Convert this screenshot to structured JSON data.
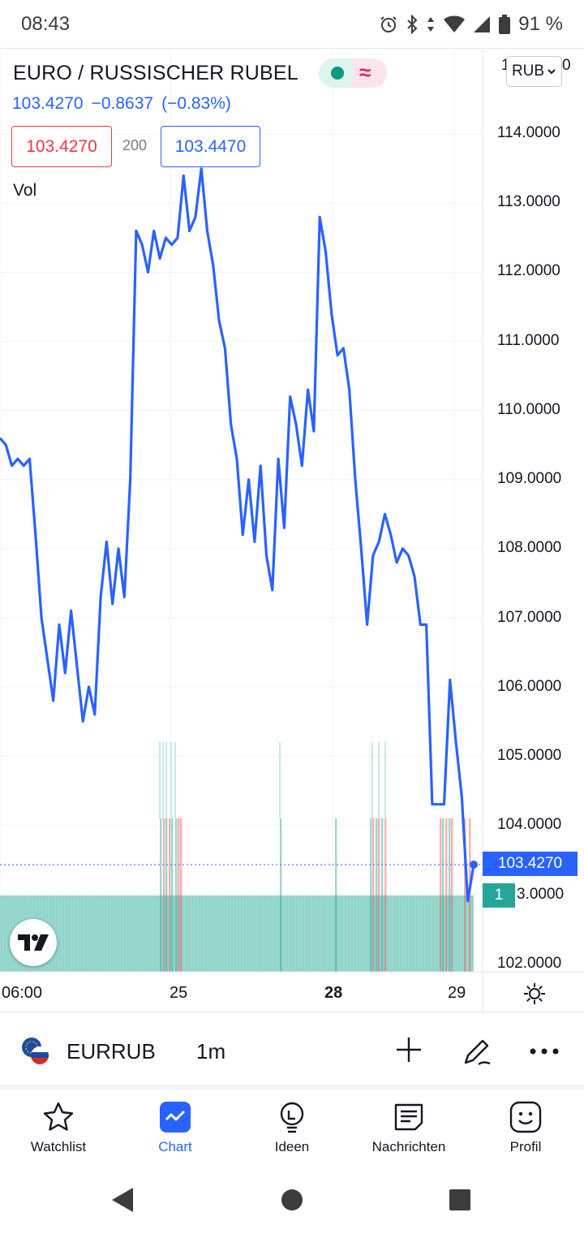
{
  "status_bar": {
    "time": "08:43",
    "battery": "91 %"
  },
  "symbol": {
    "title": "EURO / RUSSISCHER RUBEL",
    "price": "103.4270",
    "change": "−0.8637",
    "change_pct": "(−0.83%)",
    "bid": "103.4270",
    "spread": "200",
    "ask": "103.4470",
    "vol_label": "Vol",
    "currency": "RUB",
    "currency_partial": "1",
    "currency_partial2": "0"
  },
  "price_axis": {
    "labels": [
      "114.0000",
      "113.0000",
      "112.0000",
      "111.0000",
      "110.0000",
      "109.0000",
      "108.0000",
      "107.0000",
      "106.0000",
      "105.0000",
      "104.0000",
      "102.0000"
    ],
    "last_price_tag": "103.4270",
    "volume_tag": "1",
    "volume_tag_price": "3.0000"
  },
  "time_axis": {
    "labels": [
      "06:00",
      "25",
      "28",
      "29"
    ]
  },
  "colors": {
    "line": "#2962ff",
    "vol_up": "#26a69a",
    "vol_down": "#ef5350",
    "bid": "#f23645",
    "ask": "#2962ff"
  },
  "chart_data": {
    "type": "line",
    "ylim": [
      102.0,
      114.3
    ],
    "series": [
      {
        "values": [
          109.6,
          109.5,
          109.2,
          109.3,
          109.2,
          109.3,
          108.2,
          107.0,
          106.4,
          105.8,
          106.9,
          106.2,
          107.1,
          106.3,
          105.5,
          106.0,
          105.6,
          107.3,
          108.1,
          107.2,
          108.0,
          107.3,
          109.0,
          112.6,
          112.4,
          112.0,
          112.6,
          112.2,
          112.5,
          112.4,
          112.5,
          113.4,
          112.6,
          112.8,
          113.5,
          112.6,
          112.1,
          111.3,
          110.9,
          109.8,
          109.3,
          108.2,
          109.0,
          108.1,
          109.2,
          107.9,
          107.4,
          109.3,
          108.3,
          110.2,
          109.8,
          109.2,
          110.3,
          109.7,
          112.8,
          112.3,
          111.4,
          110.8,
          110.9,
          110.3,
          109.0,
          108.0,
          106.9,
          107.9,
          108.1,
          108.5,
          108.2,
          107.8,
          108.0,
          107.9,
          107.6,
          106.9,
          106.9,
          104.3,
          104.3,
          104.3,
          106.1,
          105.2,
          104.4,
          102.9,
          103.427
        ]
      }
    ],
    "volume": {
      "base_level": "1",
      "up_color": "#26a69a",
      "down_color": "#ef5350"
    }
  },
  "symbol_bar": {
    "ticker": "EURRUB",
    "interval": "1m"
  },
  "nav": [
    {
      "label": "Watchlist"
    },
    {
      "label": "Chart"
    },
    {
      "label": "Ideen"
    },
    {
      "label": "Nachrichten"
    },
    {
      "label": "Profil"
    }
  ]
}
